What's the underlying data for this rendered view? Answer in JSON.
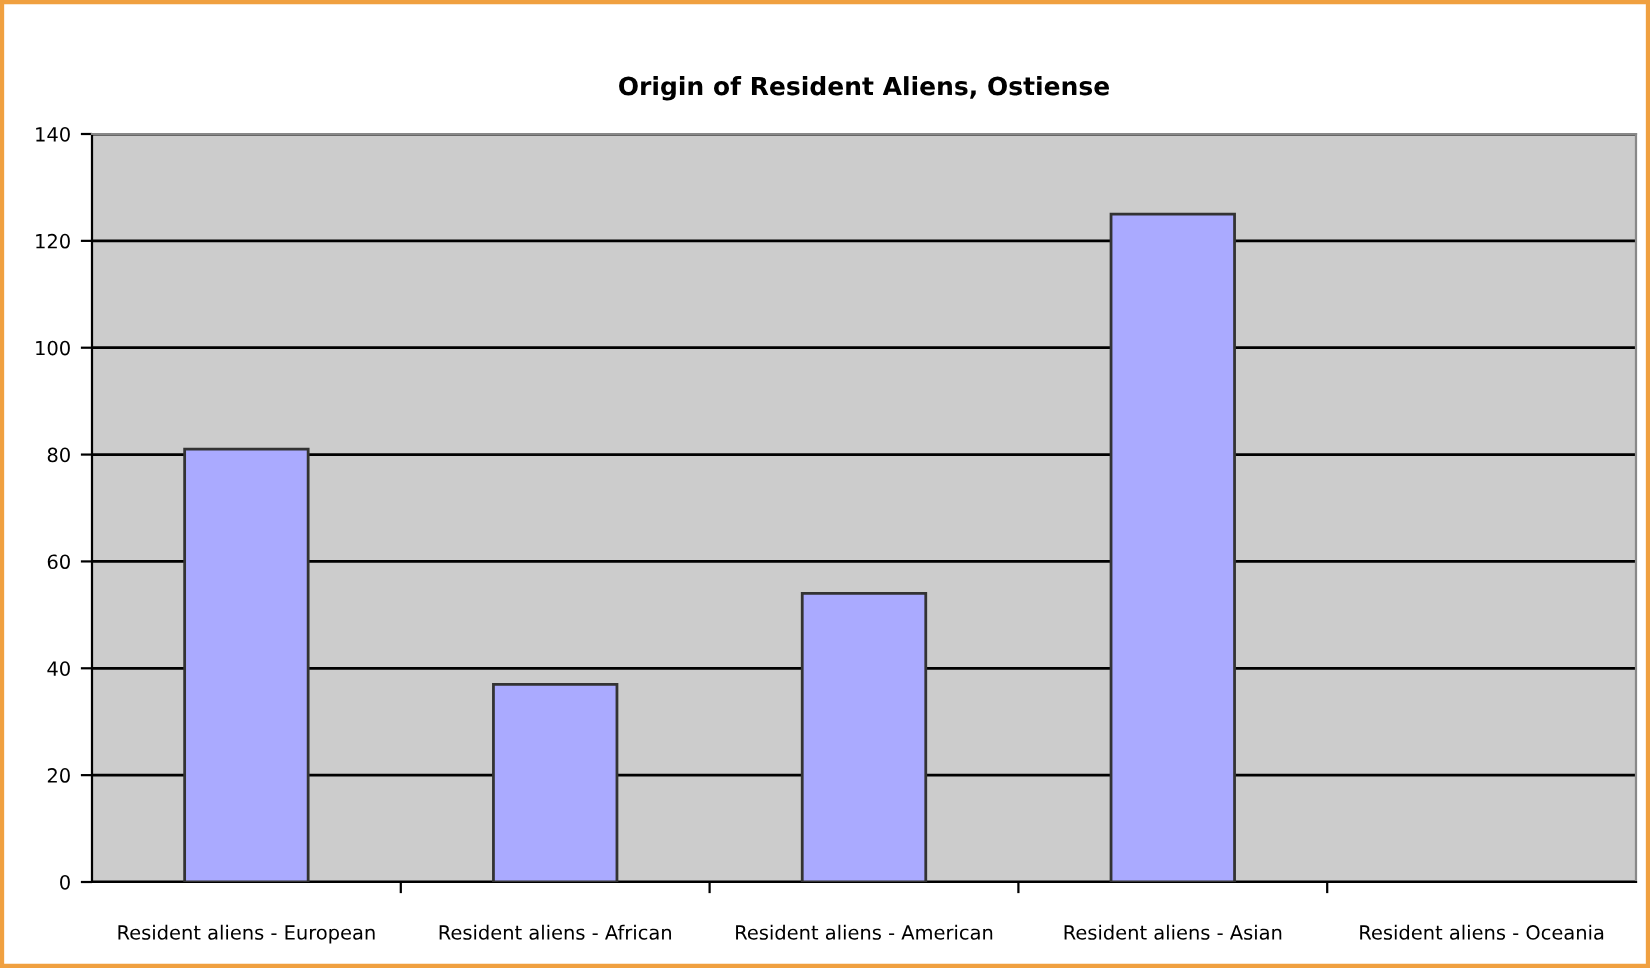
{
  "chart_data": {
    "type": "bar",
    "title": "Origin of Resident Aliens, Ostiense",
    "categories": [
      "Resident aliens - European",
      "Resident aliens - African",
      "Resident aliens - American",
      "Resident aliens - Asian",
      "Resident aliens - Oceania"
    ],
    "values": [
      81,
      37,
      54,
      125,
      null
    ],
    "color": "#aaaaff",
    "ylim": [
      0,
      140
    ],
    "yticks": [
      0,
      20,
      40,
      60,
      80,
      100,
      120,
      140
    ],
    "grid": "y",
    "legend": false
  }
}
